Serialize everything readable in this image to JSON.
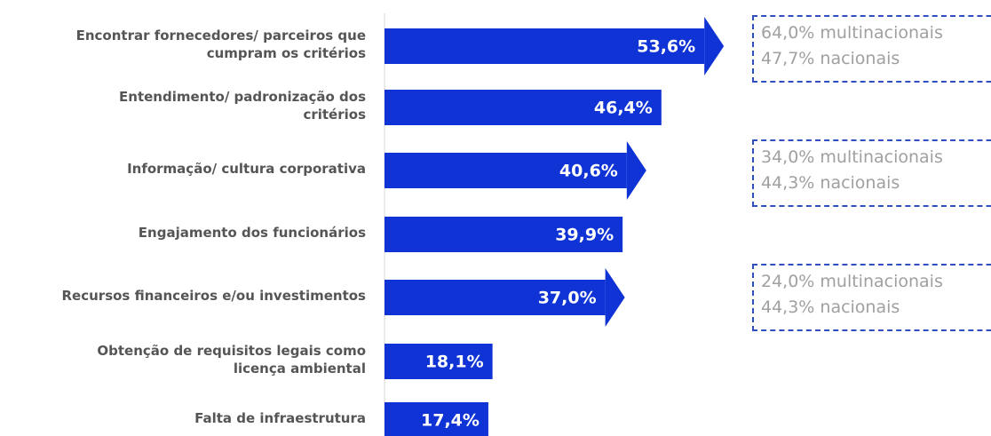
{
  "chart_data": {
    "type": "bar",
    "orientation": "horizontal",
    "categories": [
      "Encontrar fornecedores/ parceiros que cumpram os critérios",
      "Entendimento/ padronização dos critérios",
      "Informação/ cultura corporativa",
      "Engajamento dos funcionários",
      "Recursos financeiros e/ou investimentos",
      "Obtenção de requisitos legais como licença ambiental",
      "Falta de infraestrutura"
    ],
    "values": [
      53.6,
      46.4,
      40.6,
      39.9,
      37.0,
      18.1,
      17.4
    ],
    "value_labels": [
      "53,6%",
      "46,4%",
      "40,6%",
      "39,9%",
      "37,0%",
      "18,1%",
      "17,4%"
    ],
    "color": "#0f33d4",
    "annotations": [
      {
        "lines": [
          "64,0% multinacionais",
          "47,7% nacionais"
        ]
      },
      {
        "lines": [
          "34,0% multinacionais",
          "44,3% nacionais"
        ]
      },
      {
        "lines": [
          "24,0% multinacionais",
          "44,3% nacionais"
        ]
      }
    ]
  }
}
